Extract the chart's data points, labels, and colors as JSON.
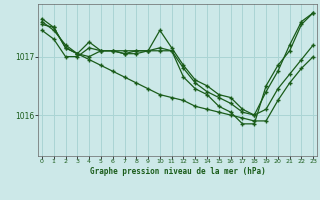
{
  "title": "Graphe pression niveau de la mer (hPa)",
  "background_color": "#cce8e8",
  "grid_color": "#aad4d4",
  "line_color": "#1a5c1a",
  "x_ticks": [
    0,
    1,
    2,
    3,
    4,
    5,
    6,
    7,
    8,
    9,
    10,
    11,
    12,
    13,
    14,
    15,
    16,
    17,
    18,
    19,
    20,
    21,
    22,
    23
  ],
  "ylim": [
    1015.3,
    1017.9
  ],
  "yticks": [
    1016,
    1017
  ],
  "series": [
    [
      1017.55,
      1017.5,
      1017.15,
      1017.05,
      1017.25,
      1017.1,
      1017.1,
      1017.1,
      1017.1,
      1017.1,
      1017.45,
      1017.15,
      1016.85,
      1016.6,
      1016.5,
      1016.35,
      1016.3,
      1016.1,
      1016.0,
      1016.1,
      1016.45,
      1016.7,
      1016.95,
      1017.2
    ],
    [
      1017.65,
      1017.5,
      1017.15,
      1017.05,
      1017.0,
      1017.1,
      1017.1,
      1017.05,
      1017.05,
      1017.1,
      1017.1,
      1017.1,
      1016.65,
      1016.45,
      1016.35,
      1016.15,
      1016.05,
      1015.85,
      1015.85,
      1016.5,
      1016.85,
      1017.1,
      1017.55,
      1017.75
    ],
    [
      1017.45,
      1017.3,
      1017.0,
      1017.0,
      1017.15,
      1017.1,
      1017.1,
      1017.05,
      1017.1,
      1017.1,
      1017.15,
      1017.1,
      1016.8,
      1016.55,
      1016.4,
      1016.3,
      1016.2,
      1016.05,
      1016.0,
      1016.4,
      1016.75,
      1017.2,
      1017.6,
      1017.75
    ],
    [
      1017.6,
      1017.45,
      1017.2,
      1017.05,
      1016.95,
      1016.85,
      1016.75,
      1016.65,
      1016.55,
      1016.45,
      1016.35,
      1016.3,
      1016.25,
      1016.15,
      1016.1,
      1016.05,
      1016.0,
      1015.95,
      1015.9,
      1015.9,
      1016.25,
      1016.55,
      1016.8,
      1017.0
    ]
  ]
}
